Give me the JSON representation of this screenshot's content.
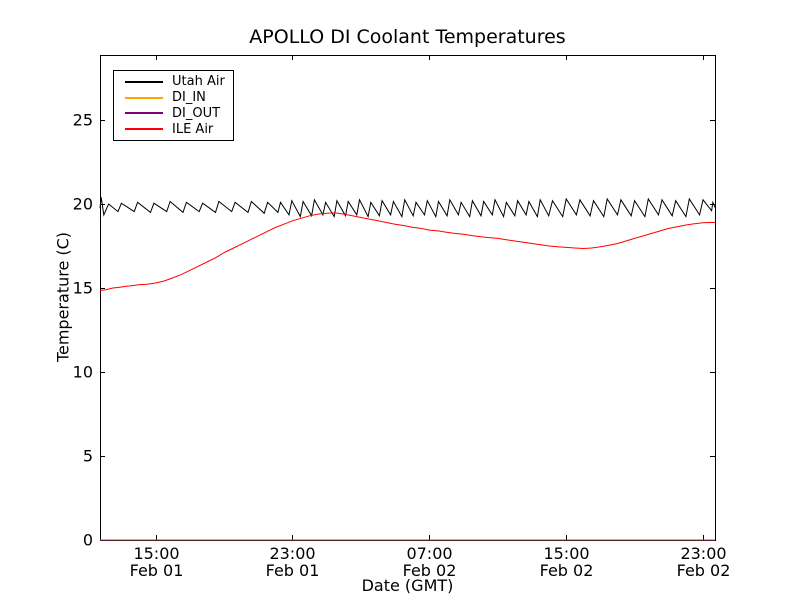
{
  "chart_data": {
    "type": "line",
    "title": "APOLLO DI Coolant Temperatures",
    "xlabel": "Date (GMT)",
    "ylabel": "Temperature (C)",
    "grid": false,
    "legend_position": "upper left",
    "colors": {
      "axes": "#000000",
      "background": "#ffffff"
    },
    "x_axis": {
      "unit": "hours since Feb 01 00:00 GMT",
      "lim": [
        11.75,
        47.7
      ],
      "ticks": [
        {
          "t": 15,
          "time": "15:00",
          "date": "Feb 01"
        },
        {
          "t": 23,
          "time": "23:00",
          "date": "Feb 01"
        },
        {
          "t": 31,
          "time": "07:00",
          "date": "Feb 02"
        },
        {
          "t": 39,
          "time": "15:00",
          "date": "Feb 02"
        },
        {
          "t": 47,
          "time": "23:00",
          "date": "Feb 02"
        }
      ]
    },
    "y_axis": {
      "lim": [
        0,
        28.87
      ],
      "ticks": [
        0,
        5,
        10,
        15,
        20,
        25
      ]
    },
    "series": [
      {
        "name": "Utah Air",
        "color": "#000000",
        "opacity": 1,
        "points": [
          [
            11.75,
            19.75
          ],
          [
            11.82,
            20.4
          ],
          [
            11.97,
            19.35
          ],
          [
            12.25,
            20.0
          ],
          [
            12.8,
            19.55
          ],
          [
            13.0,
            20.05
          ],
          [
            13.75,
            19.55
          ],
          [
            13.95,
            20.1
          ],
          [
            14.7,
            19.5
          ],
          [
            14.9,
            20.05
          ],
          [
            15.65,
            19.55
          ],
          [
            15.85,
            20.15
          ],
          [
            16.6,
            19.5
          ],
          [
            16.8,
            20.1
          ],
          [
            17.55,
            19.55
          ],
          [
            17.75,
            20.05
          ],
          [
            18.5,
            19.5
          ],
          [
            18.7,
            20.15
          ],
          [
            19.45,
            19.55
          ],
          [
            19.65,
            20.1
          ],
          [
            20.4,
            19.5
          ],
          [
            20.6,
            20.15
          ],
          [
            21.35,
            19.45
          ],
          [
            21.55,
            20.1
          ],
          [
            22.15,
            19.5
          ],
          [
            22.3,
            20.1
          ],
          [
            22.8,
            19.35
          ],
          [
            22.96,
            20.2
          ],
          [
            23.46,
            19.25
          ],
          [
            23.62,
            20.15
          ],
          [
            24.12,
            19.3
          ],
          [
            24.28,
            20.25
          ],
          [
            24.78,
            19.35
          ],
          [
            24.94,
            20.1
          ],
          [
            25.44,
            19.25
          ],
          [
            25.6,
            20.2
          ],
          [
            26.1,
            19.3
          ],
          [
            26.26,
            20.15
          ],
          [
            26.76,
            19.35
          ],
          [
            26.92,
            20.25
          ],
          [
            27.42,
            19.25
          ],
          [
            27.58,
            20.1
          ],
          [
            28.08,
            19.3
          ],
          [
            28.24,
            20.2
          ],
          [
            28.74,
            19.35
          ],
          [
            28.9,
            20.15
          ],
          [
            29.4,
            19.25
          ],
          [
            29.56,
            20.25
          ],
          [
            30.06,
            19.3
          ],
          [
            30.22,
            20.1
          ],
          [
            30.72,
            19.35
          ],
          [
            30.88,
            20.2
          ],
          [
            31.38,
            19.25
          ],
          [
            31.54,
            20.15
          ],
          [
            32.04,
            19.3
          ],
          [
            32.2,
            20.25
          ],
          [
            32.7,
            19.35
          ],
          [
            32.86,
            20.1
          ],
          [
            33.36,
            19.25
          ],
          [
            33.52,
            20.2
          ],
          [
            34.02,
            19.3
          ],
          [
            34.18,
            20.15
          ],
          [
            34.68,
            19.35
          ],
          [
            34.84,
            20.25
          ],
          [
            35.34,
            19.25
          ],
          [
            35.5,
            20.1
          ],
          [
            36.0,
            19.3
          ],
          [
            36.16,
            20.2
          ],
          [
            36.66,
            19.35
          ],
          [
            36.82,
            20.15
          ],
          [
            37.32,
            19.25
          ],
          [
            37.48,
            20.25
          ],
          [
            37.98,
            19.3
          ],
          [
            38.2,
            20.2
          ],
          [
            38.8,
            19.25
          ],
          [
            39.0,
            20.3
          ],
          [
            39.6,
            19.35
          ],
          [
            39.8,
            20.25
          ],
          [
            40.4,
            19.3
          ],
          [
            40.6,
            20.2
          ],
          [
            41.2,
            19.25
          ],
          [
            41.4,
            20.3
          ],
          [
            42.0,
            19.35
          ],
          [
            42.2,
            20.25
          ],
          [
            42.8,
            19.3
          ],
          [
            43.0,
            20.2
          ],
          [
            43.6,
            19.25
          ],
          [
            43.8,
            20.3
          ],
          [
            44.4,
            19.35
          ],
          [
            44.6,
            20.25
          ],
          [
            45.2,
            19.3
          ],
          [
            45.4,
            20.2
          ],
          [
            46.0,
            19.25
          ],
          [
            46.2,
            20.3
          ],
          [
            46.8,
            19.35
          ],
          [
            47.0,
            20.25
          ],
          [
            47.5,
            19.6
          ],
          [
            47.58,
            20.1
          ],
          [
            47.7,
            19.8
          ]
        ]
      },
      {
        "name": "DI_IN",
        "color": "#ffa500",
        "opacity": 0.85,
        "points": [
          [
            11.75,
            0
          ],
          [
            47.7,
            0
          ]
        ]
      },
      {
        "name": "DI_OUT",
        "color": "#800080",
        "opacity": 0.55,
        "points": [
          [
            11.75,
            0
          ],
          [
            47.7,
            0
          ]
        ]
      },
      {
        "name": "ILE Air",
        "color": "#ff0000",
        "opacity": 1,
        "points": [
          [
            11.75,
            14.85
          ],
          [
            12.1,
            14.9
          ],
          [
            12.5,
            15.0
          ],
          [
            12.9,
            15.05
          ],
          [
            13.3,
            15.1
          ],
          [
            13.7,
            15.15
          ],
          [
            14.1,
            15.2
          ],
          [
            14.5,
            15.22
          ],
          [
            15.0,
            15.3
          ],
          [
            15.5,
            15.42
          ],
          [
            16.0,
            15.6
          ],
          [
            16.5,
            15.8
          ],
          [
            17.0,
            16.05
          ],
          [
            17.5,
            16.3
          ],
          [
            18.0,
            16.55
          ],
          [
            18.5,
            16.8
          ],
          [
            19.0,
            17.1
          ],
          [
            19.5,
            17.35
          ],
          [
            20.0,
            17.6
          ],
          [
            20.5,
            17.85
          ],
          [
            21.0,
            18.1
          ],
          [
            21.5,
            18.35
          ],
          [
            22.0,
            18.6
          ],
          [
            22.5,
            18.8
          ],
          [
            23.0,
            19.0
          ],
          [
            23.5,
            19.15
          ],
          [
            24.0,
            19.3
          ],
          [
            24.5,
            19.4
          ],
          [
            25.0,
            19.45
          ],
          [
            25.5,
            19.47
          ],
          [
            26.0,
            19.4
          ],
          [
            26.5,
            19.3
          ],
          [
            27.0,
            19.2
          ],
          [
            27.5,
            19.1
          ],
          [
            28.0,
            19.0
          ],
          [
            28.5,
            18.9
          ],
          [
            29.0,
            18.8
          ],
          [
            29.5,
            18.72
          ],
          [
            30.0,
            18.62
          ],
          [
            30.5,
            18.55
          ],
          [
            31.0,
            18.45
          ],
          [
            31.5,
            18.4
          ],
          [
            32.0,
            18.32
          ],
          [
            32.5,
            18.25
          ],
          [
            33.0,
            18.2
          ],
          [
            33.5,
            18.12
          ],
          [
            34.0,
            18.05
          ],
          [
            34.5,
            18.0
          ],
          [
            35.0,
            17.95
          ],
          [
            35.5,
            17.87
          ],
          [
            36.0,
            17.8
          ],
          [
            36.5,
            17.72
          ],
          [
            37.0,
            17.65
          ],
          [
            37.5,
            17.57
          ],
          [
            38.0,
            17.5
          ],
          [
            38.5,
            17.45
          ],
          [
            39.0,
            17.42
          ],
          [
            39.5,
            17.38
          ],
          [
            40.0,
            17.35
          ],
          [
            40.5,
            17.38
          ],
          [
            41.0,
            17.45
          ],
          [
            41.5,
            17.55
          ],
          [
            42.0,
            17.65
          ],
          [
            42.5,
            17.8
          ],
          [
            43.0,
            17.95
          ],
          [
            43.5,
            18.1
          ],
          [
            44.0,
            18.25
          ],
          [
            44.5,
            18.4
          ],
          [
            45.0,
            18.55
          ],
          [
            45.5,
            18.65
          ],
          [
            46.0,
            18.75
          ],
          [
            46.5,
            18.82
          ],
          [
            47.0,
            18.88
          ],
          [
            47.4,
            18.9
          ],
          [
            47.7,
            18.9
          ]
        ]
      }
    ]
  }
}
